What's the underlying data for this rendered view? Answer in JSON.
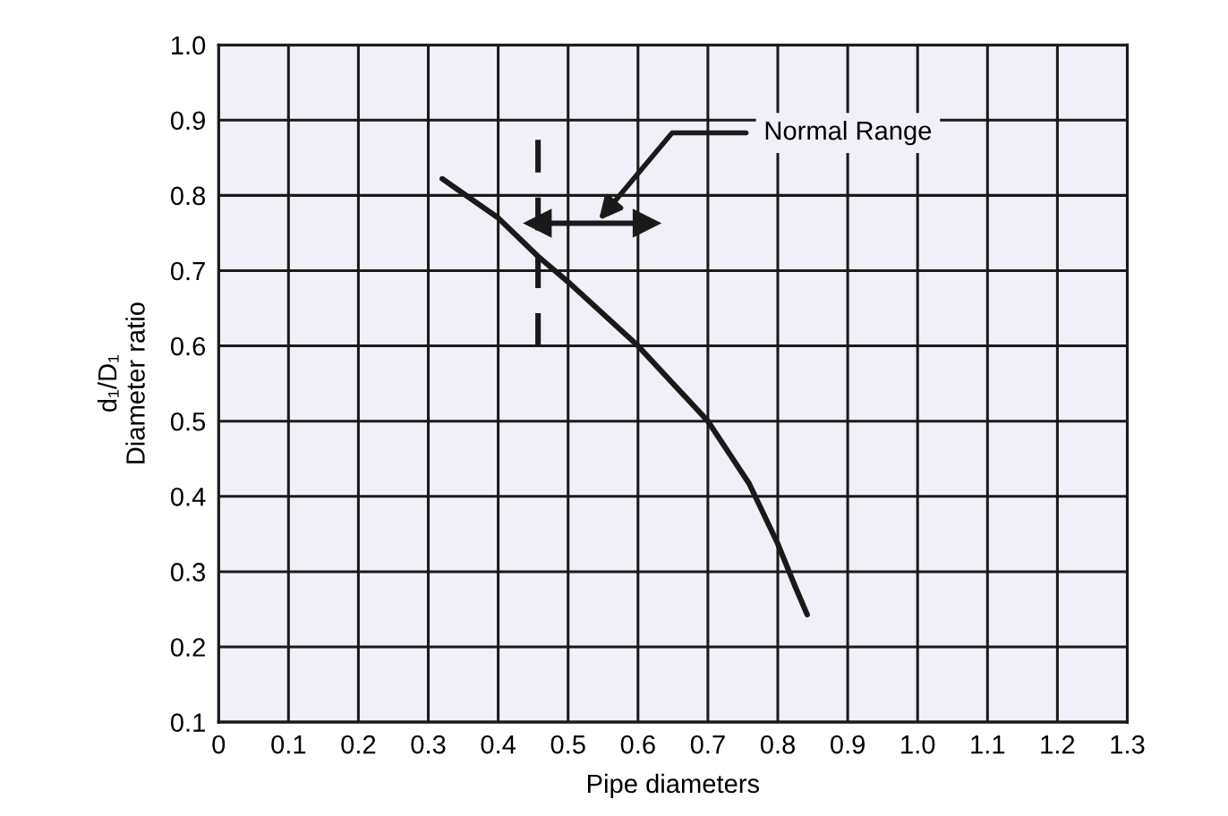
{
  "chart_data": {
    "type": "line",
    "xlabel": "Pipe diameters",
    "ylabel": "d₁/D₁\nDiameter ratio",
    "series": [
      {
        "color": "#1a1a1a",
        "x": [
          0.32,
          0.4,
          0.457,
          0.5,
          0.6,
          0.7,
          0.759,
          0.8,
          0.825,
          0.842
        ],
        "values": [
          0.822,
          0.77,
          0.719,
          0.685,
          0.6,
          0.5,
          0.417,
          0.337,
          0.28,
          0.243
        ],
        "line_style": "solid"
      },
      {
        "color": "#1a1a1a",
        "x": [
          0.457,
          0.457
        ],
        "values": [
          0.6,
          0.874
        ],
        "line_style": "dashed"
      },
      {
        "color": "#1a1a1a",
        "x": [
          0.457,
          0.612
        ],
        "values": [
          0.763,
          0.763
        ],
        "line_style": "solid",
        "marker": "triangle"
      }
    ],
    "annotations": [
      {
        "text": "Normal Range",
        "x": 0.544,
        "y": 0.767
      }
    ],
    "xlim": [
      0,
      1.3
    ],
    "ylim": [
      0.1,
      1.0
    ],
    "xticks": [
      0,
      0.1,
      0.2,
      0.3,
      0.4,
      0.5,
      0.6,
      0.7,
      0.8,
      0.9,
      {
        "value": 1.0,
        "label": "1.0"
      },
      1.1,
      1.2,
      1.3
    ],
    "yticks": [
      0.1,
      0.2,
      0.3,
      0.4,
      0.5,
      0.6,
      0.7,
      0.8,
      0.9,
      {
        "value": 1.0,
        "label": "1.0"
      }
    ],
    "grid": true,
    "legend": false
  }
}
